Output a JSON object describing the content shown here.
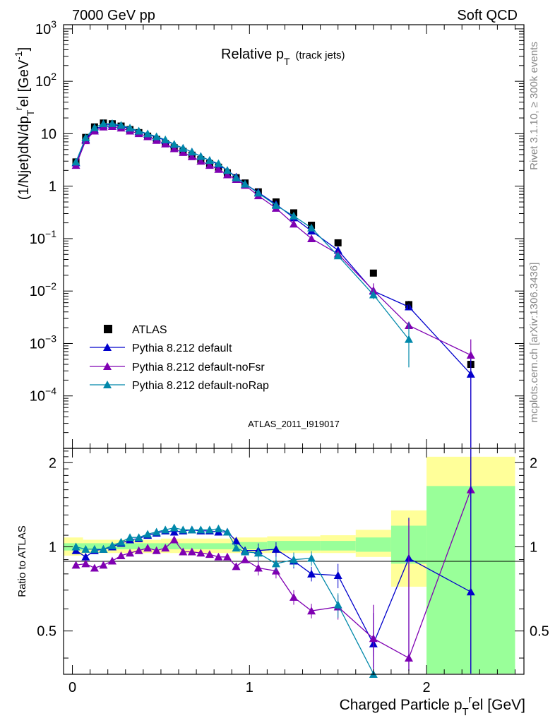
{
  "header": {
    "left": "7000 GeV pp",
    "right": "Soft QCD"
  },
  "side": {
    "rivet": "Rivet 3.1.10, ≥ 300k events",
    "mcplots": "mcplots.cern.ch [arXiv:1306.3436]"
  },
  "colors": {
    "atlas": "#000000",
    "default": "#0000cc",
    "noFsr": "#7f00b2",
    "noRap": "#0088aa",
    "band_inner": "#99ff99",
    "band_outer": "#ffff99"
  },
  "chart_data": [
    {
      "type": "scatter",
      "title": "Relative p_T (track jets)",
      "title_main": "Relative p",
      "title_sub": "T",
      "title_note": "(track jets)",
      "ylabel": "(1/Njet)dN/dp_T^rel [GeV^-1]",
      "xlabel": "Charged Particle p_T^rel [GeV]",
      "yscale": "log",
      "ylim": [
        1e-05,
        1200
      ],
      "xlim": [
        -0.05,
        2.55
      ],
      "ytick_labels": [
        {
          "v": 1000,
          "base": "10",
          "exp": "3"
        },
        {
          "v": 100,
          "base": "10",
          "exp": "2"
        },
        {
          "v": 10,
          "base": "10",
          "exp": ""
        },
        {
          "v": 1,
          "base": "1",
          "exp": ""
        },
        {
          "v": 0.1,
          "base": "10",
          "exp": "−1"
        },
        {
          "v": 0.01,
          "base": "10",
          "exp": "−2"
        },
        {
          "v": 0.001,
          "base": "10",
          "exp": "−3"
        },
        {
          "v": 0.0001,
          "base": "10",
          "exp": "−4"
        }
      ],
      "watermark": "ATLAS_2011_I919017",
      "legend": [
        "ATLAS",
        "Pythia 8.212 default",
        "Pythia 8.212 default-noFsr",
        "Pythia 8.212 default-noRap"
      ],
      "x": [
        0.02,
        0.075,
        0.125,
        0.175,
        0.225,
        0.275,
        0.325,
        0.375,
        0.425,
        0.475,
        0.525,
        0.575,
        0.625,
        0.675,
        0.725,
        0.775,
        0.825,
        0.875,
        0.925,
        0.975,
        1.05,
        1.15,
        1.25,
        1.35,
        1.5,
        1.7,
        1.9,
        2.25
      ],
      "series": [
        {
          "name": "ATLAS",
          "values": [
            2.9,
            8.5,
            13.5,
            16.0,
            15.5,
            14.0,
            12.0,
            10.5,
            9.0,
            7.8,
            6.5,
            5.4,
            4.6,
            3.9,
            3.2,
            2.7,
            2.3,
            1.8,
            1.45,
            1.15,
            0.78,
            0.5,
            0.31,
            0.18,
            0.083,
            0.022,
            0.0055,
            0.0004
          ]
        },
        {
          "name": "Pythia 8.212 default",
          "values": [
            2.8,
            7.8,
            12.0,
            14.5,
            15.0,
            14.0,
            12.5,
            11.0,
            9.8,
            8.6,
            7.5,
            6.2,
            5.3,
            4.5,
            3.7,
            3.1,
            2.6,
            2.0,
            1.5,
            1.1,
            0.76,
            0.45,
            0.25,
            0.14,
            0.06,
            0.01,
            0.005,
            0.00026
          ]
        },
        {
          "name": "Pythia 8.212 default-noFsr",
          "values": [
            2.5,
            7.4,
            11.3,
            13.5,
            13.8,
            12.9,
            11.3,
            10.1,
            8.8,
            7.5,
            6.4,
            5.2,
            4.4,
            3.65,
            3.0,
            2.5,
            2.1,
            1.65,
            1.35,
            1.04,
            0.66,
            0.38,
            0.19,
            0.1,
            0.051,
            0.0103,
            0.0022,
            0.0006
          ]
        },
        {
          "name": "Pythia 8.212 default-noRap",
          "values": [
            2.9,
            8.4,
            13.1,
            15.6,
            15.7,
            14.5,
            12.9,
            11.3,
            10.0,
            8.8,
            7.7,
            6.3,
            5.3,
            4.5,
            3.7,
            3.1,
            2.7,
            2.0,
            1.45,
            1.1,
            0.74,
            0.43,
            0.27,
            0.16,
            0.047,
            0.0085,
            0.0012,
            null
          ]
        }
      ]
    },
    {
      "type": "scatter",
      "title": "",
      "ylabel": "Ratio to ATLAS",
      "xlabel": "Charged Particle p_T^rel [GeV]",
      "ylim": [
        0.35,
        2.25
      ],
      "xlim": [
        -0.05,
        2.55
      ],
      "yticks": [
        0.5,
        1,
        2
      ],
      "ytick_labels": [
        "0.5",
        "1",
        "2"
      ],
      "xticks": [
        0,
        1,
        2
      ],
      "xtick_labels": [
        "0",
        "1",
        "2"
      ],
      "x": [
        0.02,
        0.075,
        0.125,
        0.175,
        0.225,
        0.275,
        0.325,
        0.375,
        0.425,
        0.475,
        0.525,
        0.575,
        0.625,
        0.675,
        0.725,
        0.775,
        0.825,
        0.875,
        0.925,
        0.975,
        1.05,
        1.15,
        1.25,
        1.35,
        1.5,
        1.7,
        1.9,
        2.25
      ],
      "series": [
        {
          "name": "Pythia 8.212 default",
          "values": [
            0.97,
            0.92,
            0.97,
            0.98,
            1.0,
            1.03,
            1.06,
            1.07,
            1.1,
            1.12,
            1.14,
            1.13,
            1.14,
            1.15,
            1.14,
            1.14,
            1.13,
            1.13,
            1.05,
            0.97,
            0.97,
            0.98,
            0.89,
            0.8,
            0.79,
            0.45,
            0.91,
            0.69
          ]
        },
        {
          "name": "Pythia 8.212 default-noFsr",
          "values": [
            0.86,
            0.87,
            0.84,
            0.86,
            0.89,
            0.93,
            0.95,
            0.97,
            0.99,
            0.97,
            0.99,
            1.06,
            0.96,
            0.96,
            0.95,
            0.94,
            0.92,
            0.92,
            0.85,
            0.9,
            0.84,
            0.82,
            0.66,
            0.59,
            0.61,
            0.47,
            0.4,
            1.6
          ]
        },
        {
          "name": "Pythia 8.212 default-noRap",
          "values": [
            1.0,
            0.98,
            0.98,
            0.98,
            1.01,
            1.04,
            1.08,
            1.08,
            1.11,
            1.13,
            1.15,
            1.17,
            1.15,
            1.15,
            1.15,
            1.15,
            1.16,
            1.13,
            0.99,
            0.96,
            0.95,
            0.87,
            0.9,
            0.91,
            0.62,
            0.35,
            null,
            null
          ]
        }
      ]
    }
  ]
}
